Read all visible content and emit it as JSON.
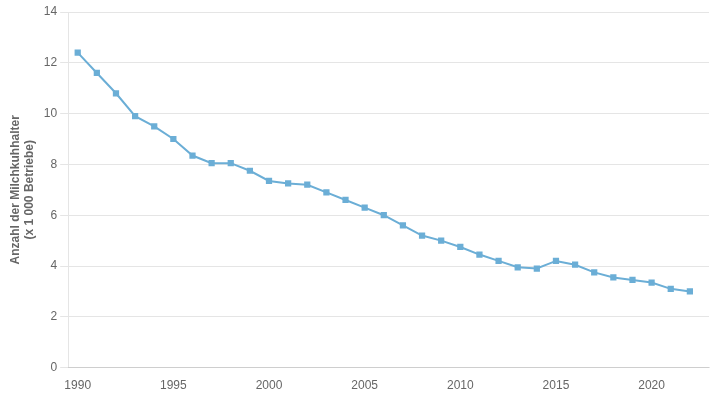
{
  "chart_data": {
    "type": "line",
    "ylabel": "Anzahl der Milchkuhhalter\n(x 1 000 Betriebe)",
    "x": [
      1990,
      1991,
      1992,
      1993,
      1994,
      1995,
      1996,
      1997,
      1998,
      1999,
      2000,
      2001,
      2002,
      2003,
      2004,
      2005,
      2006,
      2007,
      2008,
      2009,
      2010,
      2011,
      2012,
      2013,
      2014,
      2015,
      2016,
      2017,
      2018,
      2019,
      2020,
      2021,
      2022
    ],
    "values": [
      12.4,
      11.6,
      10.8,
      9.9,
      9.5,
      9.0,
      8.35,
      8.05,
      8.05,
      7.75,
      7.35,
      7.25,
      7.2,
      6.9,
      6.6,
      6.3,
      6.0,
      5.6,
      5.2,
      5.0,
      4.75,
      4.45,
      4.2,
      3.95,
      3.9,
      4.2,
      4.05,
      3.75,
      3.55,
      3.45,
      3.35,
      3.1,
      3.0
    ],
    "color": "#6baed6",
    "marker": "square",
    "xlim": [
      1989.5,
      2023.0
    ],
    "xticks": [
      1990,
      1995,
      2000,
      2005,
      2010,
      2015,
      2020
    ],
    "ylim": [
      0,
      14
    ],
    "yticks": [
      0,
      2,
      4,
      6,
      8,
      10,
      12,
      14
    ],
    "grid": "y"
  }
}
